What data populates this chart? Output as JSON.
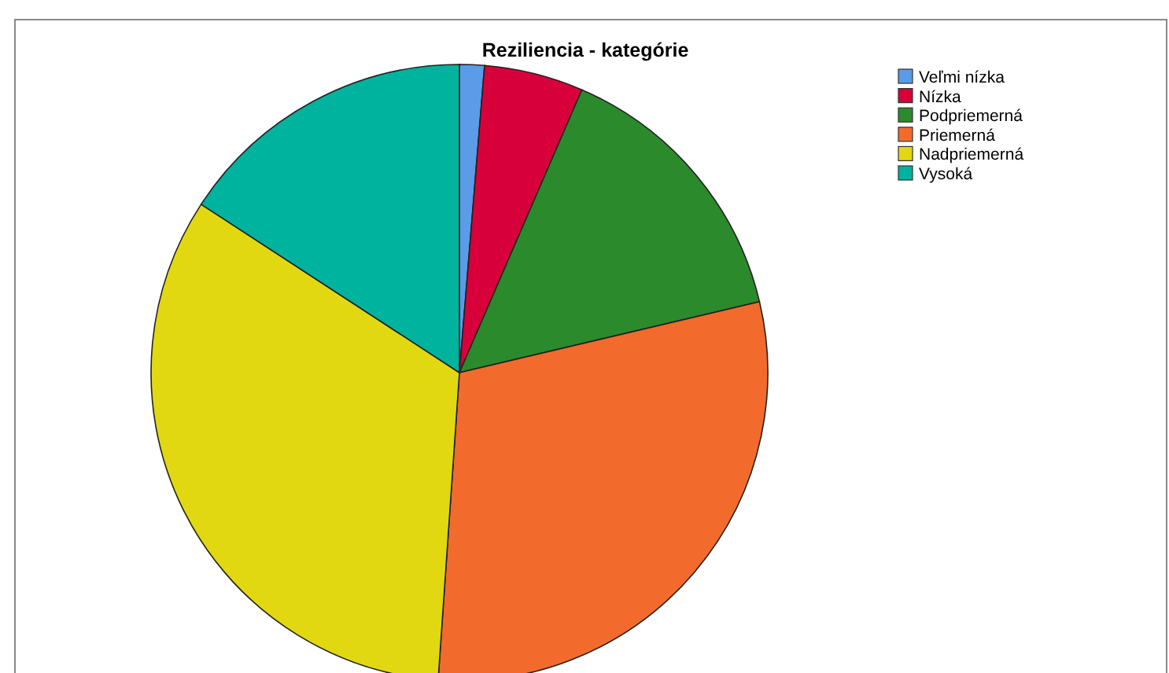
{
  "chart_data": {
    "type": "pie",
    "title": "Reziliencia - kategórie",
    "categories": [
      "Veľmi nízka",
      "Nízka",
      "Podpriemerná",
      "Priemerná",
      "Nadpriemerná",
      "Vysoká"
    ],
    "values": [
      1.3,
      5.2,
      14.8,
      29.8,
      33.1,
      15.8
    ],
    "colors": [
      "#5b9be8",
      "#d8003a",
      "#2b8a2b",
      "#f26b2d",
      "#e2d811",
      "#00b39e"
    ],
    "legend": "top right"
  }
}
